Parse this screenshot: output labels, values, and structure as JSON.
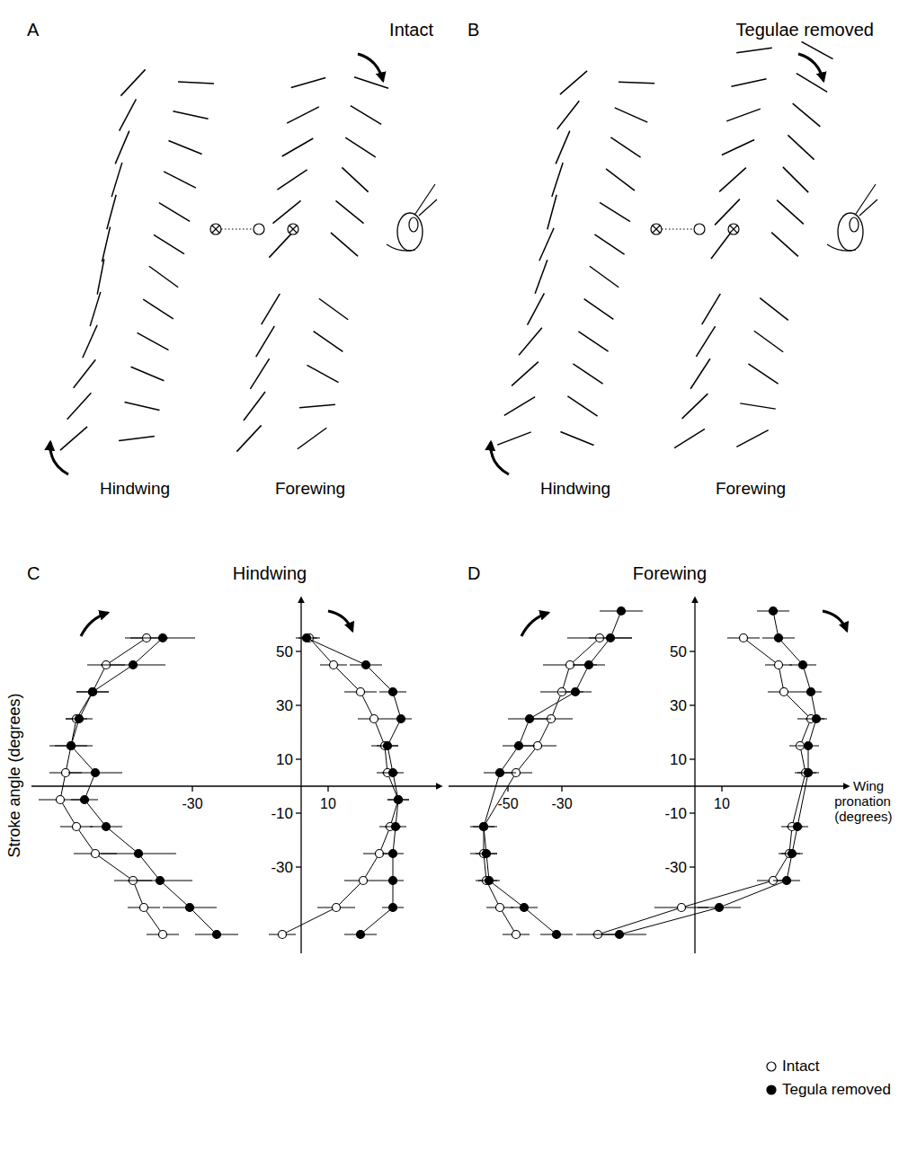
{
  "diagrams": [
    {
      "letter": "A",
      "title": "Intact",
      "wings": [
        "Hindwing",
        "Forewing"
      ]
    },
    {
      "letter": "B",
      "title": "Tegulae removed",
      "wings": [
        "Hindwing",
        "Forewing"
      ]
    }
  ],
  "chart_data": [
    {
      "type": "line",
      "letter": "C",
      "title": "Hindwing",
      "y_label": "Stroke angle (degrees)",
      "ylim": [
        -62,
        70
      ],
      "yticks": [
        50,
        30,
        10,
        -10,
        -30
      ],
      "subplots": [
        {
          "xlim": [
            -88,
            10
          ],
          "xticks": [
            -30
          ],
          "series": [
            {
              "marker": "open",
              "y": [
                55,
                45,
                35,
                25,
                15,
                5,
                -5,
                -15,
                -25,
                -35,
                -45,
                -55
              ],
              "x": [
                -47,
                -62,
                -67,
                -73,
                -75,
                -77,
                -79,
                -73,
                -66,
                -52,
                -48,
                -41
              ],
              "errors": [
                8,
                7,
                6,
                4,
                8,
                6,
                8,
                6,
                8,
                7,
                6,
                6
              ]
            },
            {
              "marker": "filled",
              "y": [
                55,
                45,
                35,
                25,
                15,
                5,
                -5,
                -15,
                -25,
                -35,
                -45,
                -55
              ],
              "x": [
                -41,
                -52,
                -67,
                -72,
                -75,
                -66,
                -70,
                -62,
                -50,
                -42,
                -31,
                -21
              ],
              "errors": [
                12,
                12,
                6,
                5,
                6,
                10,
                5,
                6,
                14,
                12,
                10,
                8
              ]
            }
          ]
        },
        {
          "xlim": [
            -12,
            52
          ],
          "xticks": [
            10
          ],
          "series": [
            {
              "marker": "open",
              "y": [
                55,
                45,
                35,
                25,
                15,
                5,
                -5,
                -15,
                -25,
                -35,
                -45,
                -55
              ],
              "x": [
                3,
                12,
                22,
                27,
                31,
                32,
                36,
                33,
                29,
                23,
                13,
                -7
              ],
              "errors": [
                4,
                5,
                6,
                6,
                5,
                4,
                4,
                4,
                6,
                7,
                7,
                5
              ]
            },
            {
              "marker": "filled",
              "y": [
                55,
                45,
                35,
                25,
                15,
                5,
                -5,
                -15,
                -25,
                -35,
                -45,
                -55
              ],
              "x": [
                2,
                24,
                34,
                37,
                32,
                34,
                36,
                35,
                34,
                34,
                34,
                22
              ],
              "errors": [
                4,
                6,
                5,
                4,
                4,
                4,
                4,
                4,
                4,
                4,
                4,
                6
              ]
            }
          ]
        }
      ]
    },
    {
      "type": "line",
      "letter": "D",
      "title": "Forewing",
      "x_label": "Wing pronation (degrees)",
      "ylim": [
        -62,
        70
      ],
      "yticks": [
        50,
        30,
        10,
        -10,
        -30
      ],
      "subplots": [
        {
          "xlim": [
            -72,
            19
          ],
          "xticks": [
            -50,
            -30
          ],
          "series": [
            {
              "marker": "open",
              "y": [
                55,
                45,
                35,
                25,
                15,
                5,
                -15,
                -25,
                -35,
                -45,
                -55
              ],
              "x": [
                -16,
                -27,
                -30,
                -34,
                -39,
                -47,
                -59,
                -59,
                -58,
                -53,
                -47
              ],
              "errors": [
                12,
                10,
                8,
                8,
                7,
                6,
                5,
                5,
                4,
                5,
                5
              ]
            },
            {
              "marker": "filled",
              "y": [
                65,
                55,
                45,
                35,
                25,
                15,
                5,
                -15,
                -25,
                -35,
                -45,
                -55
              ],
              "x": [
                -8,
                -12,
                -20,
                -25,
                -42,
                -46,
                -53,
                -59,
                -58,
                -57,
                -44,
                -32
              ],
              "errors": [
                8,
                8,
                6,
                6,
                8,
                6,
                6,
                4,
                4,
                4,
                5,
                6
              ]
            }
          ]
        },
        {
          "xlim": [
            -45,
            57
          ],
          "xticks": [
            10
          ],
          "series": [
            {
              "marker": "open",
              "y": [
                55,
                45,
                35,
                25,
                15,
                5,
                -15,
                -25,
                -35,
                -45,
                -55
              ],
              "x": [
                18,
                31,
                33,
                43,
                39,
                41,
                36,
                35,
                29,
                -5,
                -36
              ],
              "errors": [
                6,
                5,
                6,
                5,
                4,
                4,
                4,
                4,
                6,
                10,
                8
              ]
            },
            {
              "marker": "filled",
              "y": [
                65,
                55,
                45,
                35,
                25,
                15,
                5,
                -15,
                -25,
                -35,
                -45,
                -55
              ],
              "x": [
                29,
                31,
                40,
                43,
                45,
                42,
                42,
                38,
                36,
                34,
                9,
                -28
              ],
              "errors": [
                6,
                6,
                5,
                4,
                4,
                4,
                4,
                4,
                4,
                5,
                8,
                10
              ]
            }
          ]
        }
      ]
    }
  ],
  "key": [
    {
      "label": "Intact",
      "marker": "open"
    },
    {
      "label": "Tegula removed",
      "marker": "filled"
    }
  ]
}
